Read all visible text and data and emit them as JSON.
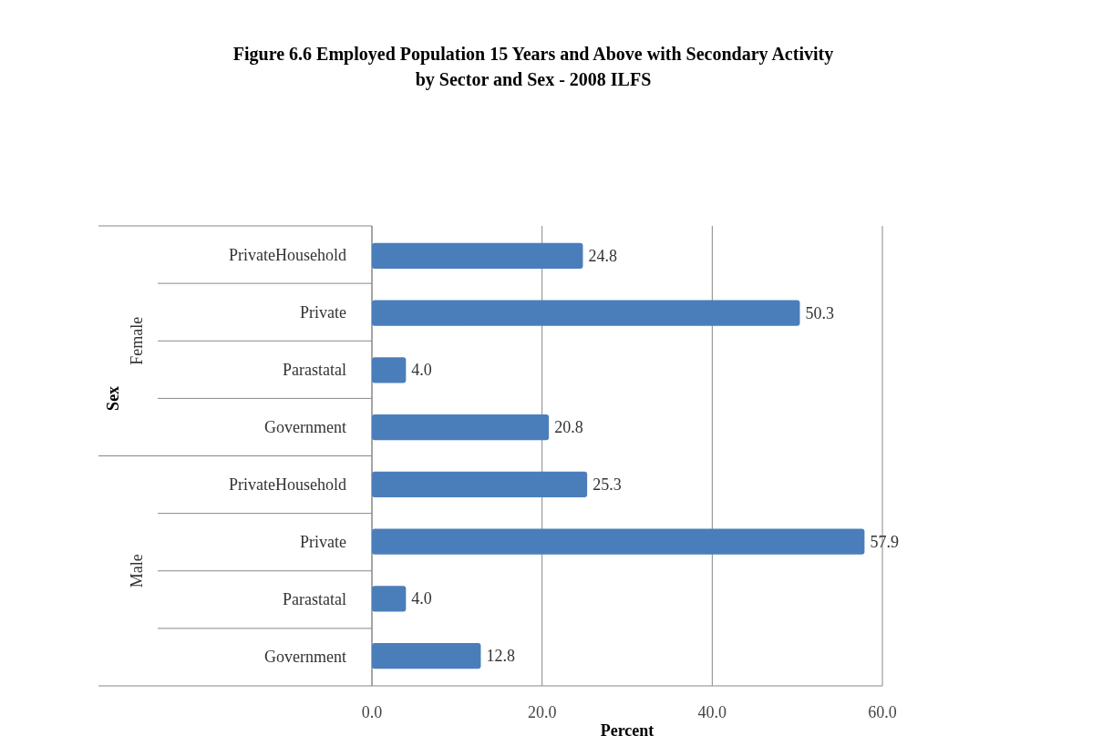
{
  "chart_data": {
    "type": "bar",
    "orientation": "horizontal",
    "title": "Figure 6.6 Employed Population 15 Years and Above with Secondary Activity by Sector and Sex - 2008 ILFS",
    "xlabel": "Percent",
    "categories": [
      "PrivateHousehold",
      "Private",
      "Parastatal",
      "Government",
      "PrivateHousehold",
      "Private",
      "Parastatal",
      "Government"
    ],
    "values": [
      24.8,
      50.3,
      4.0,
      20.8,
      25.3,
      57.9,
      4.0,
      12.8
    ],
    "value_labels": [
      "24.8",
      "50.3",
      "4.0",
      "20.8",
      "25.3",
      "57.9",
      "4.0",
      "12.8"
    ],
    "color": "#4a7ebb",
    "annotations": [
      "Sex",
      "Female",
      "Male"
    ],
    "xlim": [
      0,
      60
    ],
    "xticks": [
      {
        "value": 0,
        "label": "0.0"
      },
      {
        "value": 20,
        "label": "20.0"
      },
      {
        "value": 40,
        "label": "40.0"
      },
      {
        "value": 60,
        "label": "60.0"
      }
    ],
    "grid": "x"
  }
}
